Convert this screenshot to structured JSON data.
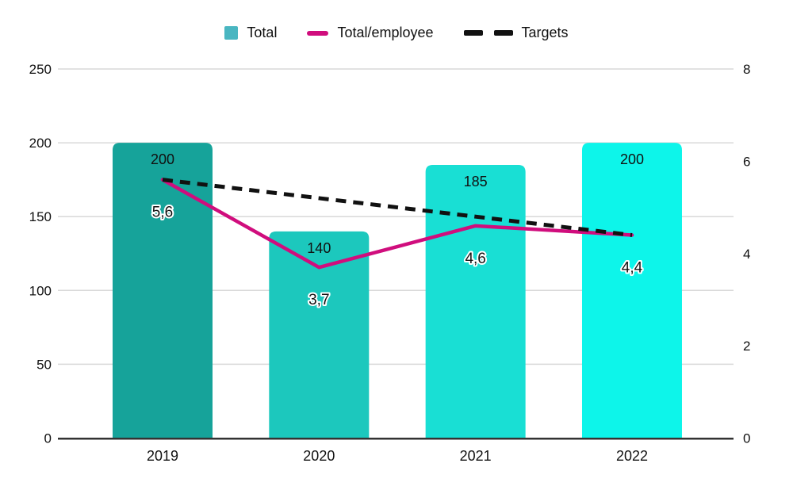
{
  "legend": {
    "items": [
      {
        "label": "Total",
        "swatch": "square",
        "color": "#49b6c1"
      },
      {
        "label": "Total/employee",
        "swatch": "line",
        "color": "#d00d7d"
      },
      {
        "label": "Targets",
        "swatch": "dashes",
        "color": "#111111"
      }
    ]
  },
  "chart_data": {
    "type": "combo",
    "categories": [
      "2019",
      "2020",
      "2021",
      "2022"
    ],
    "series": [
      {
        "name": "Total",
        "type": "bar",
        "axis": "left",
        "values": [
          200,
          140,
          185,
          200
        ],
        "data_labels": [
          "200",
          "140",
          "185",
          "200"
        ],
        "bar_colors": [
          "#16a39a",
          "#1cc8bd",
          "#19dfd4",
          "#0df5ea"
        ]
      },
      {
        "name": "Total/employee",
        "type": "line",
        "axis": "right",
        "values": [
          5.6,
          3.7,
          4.6,
          4.4
        ],
        "data_labels": [
          "5,6",
          "3,7",
          "4,6",
          "4,4"
        ],
        "color": "#d00d7d"
      },
      {
        "name": "Targets",
        "type": "line",
        "dashed": true,
        "axis": "right",
        "values": [
          5.6,
          5.2,
          4.8,
          4.4
        ],
        "color": "#111111"
      }
    ],
    "left_axis": {
      "min": 0,
      "max": 250,
      "ticks": [
        0,
        50,
        100,
        150,
        200,
        250
      ]
    },
    "right_axis": {
      "min": 0,
      "max": 8,
      "ticks": [
        0,
        2,
        4,
        6,
        8
      ]
    },
    "grid": true,
    "legend_position": "top",
    "gridline_color": "#d9d9d9",
    "axis_line_color": "#333333",
    "text_color": "#111111",
    "background": "#ffffff"
  }
}
